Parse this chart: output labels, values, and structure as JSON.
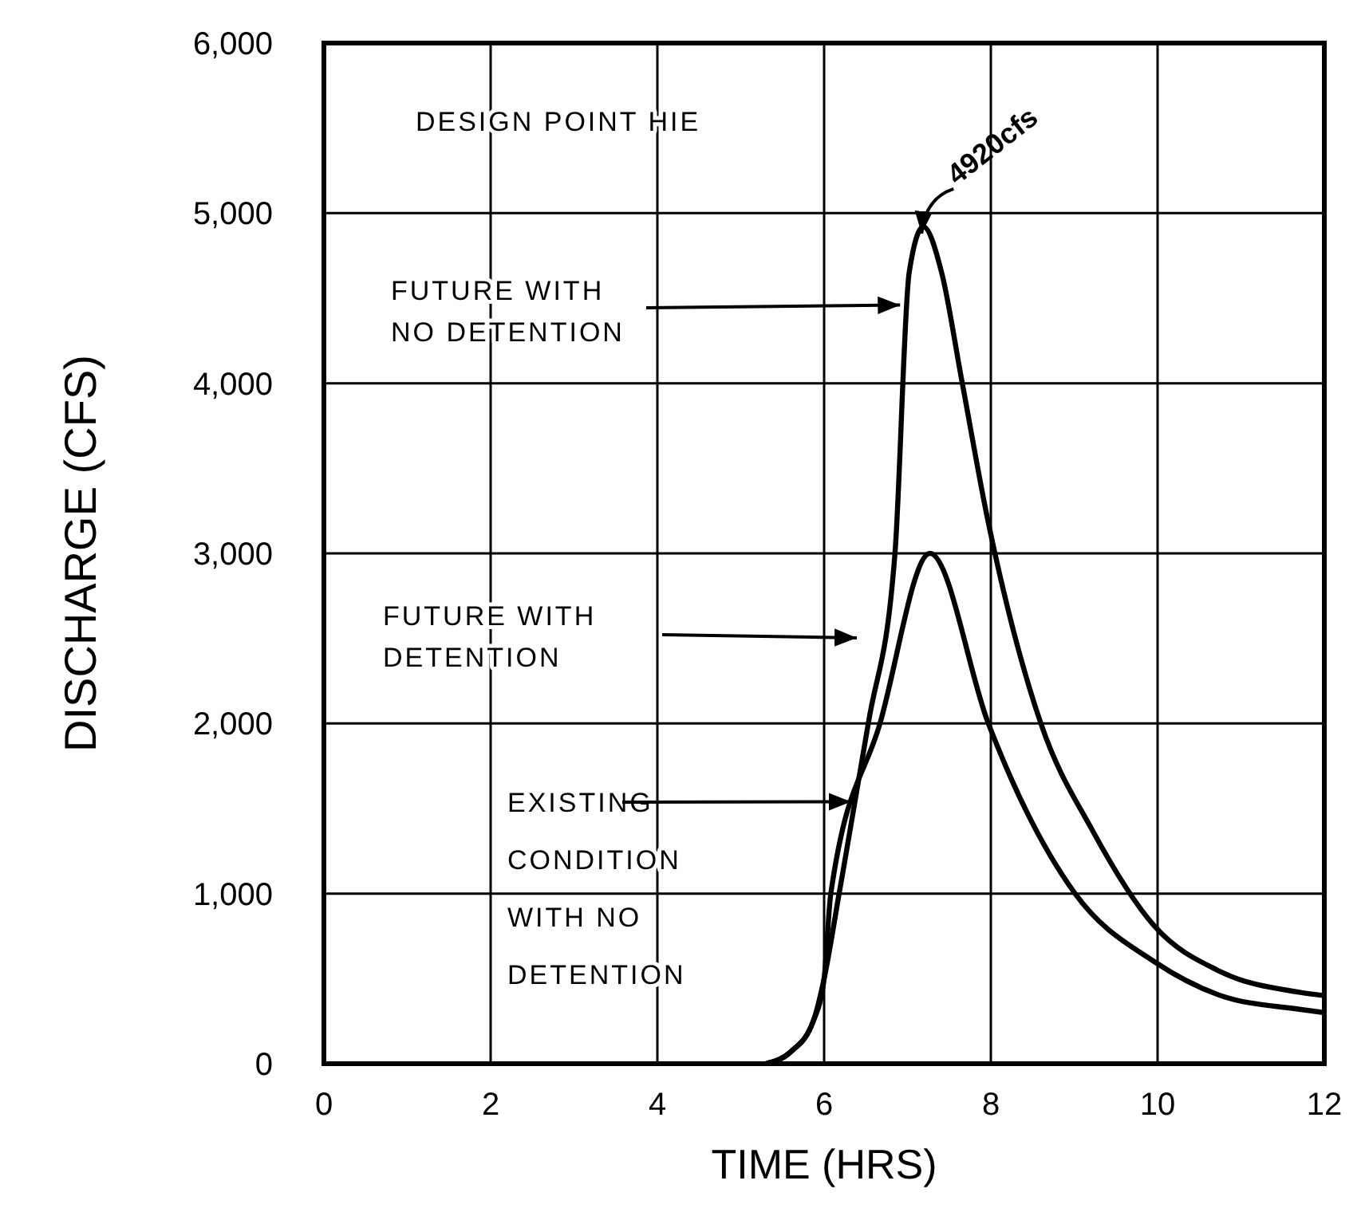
{
  "chart_data": {
    "type": "line",
    "title": "DESIGN POINT HIE",
    "xlabel": "TIME (HRS)",
    "ylabel": "DISCHARGE (CFS)",
    "xlim": [
      0,
      12
    ],
    "xticks": [
      0,
      2,
      4,
      6,
      8,
      10,
      12
    ],
    "ylim": [
      0,
      6000
    ],
    "yticks": [
      0,
      {
        "value": 1000,
        "label": "1,000"
      },
      {
        "value": 2000,
        "label": "2,000"
      },
      {
        "value": 3000,
        "label": "3,000"
      },
      {
        "value": 4000,
        "label": "4,000"
      },
      {
        "value": 5000,
        "label": "5,000"
      },
      {
        "value": 6000,
        "label": "6,000"
      }
    ],
    "grid": true,
    "marker": "none",
    "line_style": "solid",
    "series": [
      {
        "color": "#000000",
        "x": [
          5.3,
          5.6,
          5.87,
          6.0,
          6.18,
          6.53,
          6.85,
          7.02,
          7.19,
          7.41,
          7.65,
          7.97,
          8.04,
          8.6,
          9.22,
          9.96,
          10.76,
          11.7,
          12
        ],
        "values": [
          0,
          70,
          250,
          500,
          1000,
          2000,
          3000,
          4650,
          4920,
          4650,
          4020,
          3180,
          3020,
          2000,
          1370,
          810,
          540,
          420,
          400
        ]
      },
      {
        "color": "#000000",
        "x": [
          5.3,
          5.6,
          5.87,
          6.0,
          6.08,
          6.67,
          7.27,
          7.97,
          8.24,
          9.01,
          9.96,
          10.76,
          11.7,
          12
        ],
        "values": [
          0,
          70,
          250,
          500,
          1000,
          2000,
          3000,
          2000,
          1680,
          1000,
          600,
          400,
          320,
          300
        ]
      }
    ],
    "annotations": [
      {
        "text": "4920cfs",
        "x": 7.17,
        "y": 4880
      },
      {
        "text": "FUTURE WITH\nNO DETENTION",
        "x": 6.95,
        "y": 4460
      },
      "FUTURE WITH\nDETENTION",
      {
        "text": "EXISTING\nCONDITION\nWITH NO\nDETENTION",
        "x": 6.36,
        "y": 1540
      }
    ]
  }
}
